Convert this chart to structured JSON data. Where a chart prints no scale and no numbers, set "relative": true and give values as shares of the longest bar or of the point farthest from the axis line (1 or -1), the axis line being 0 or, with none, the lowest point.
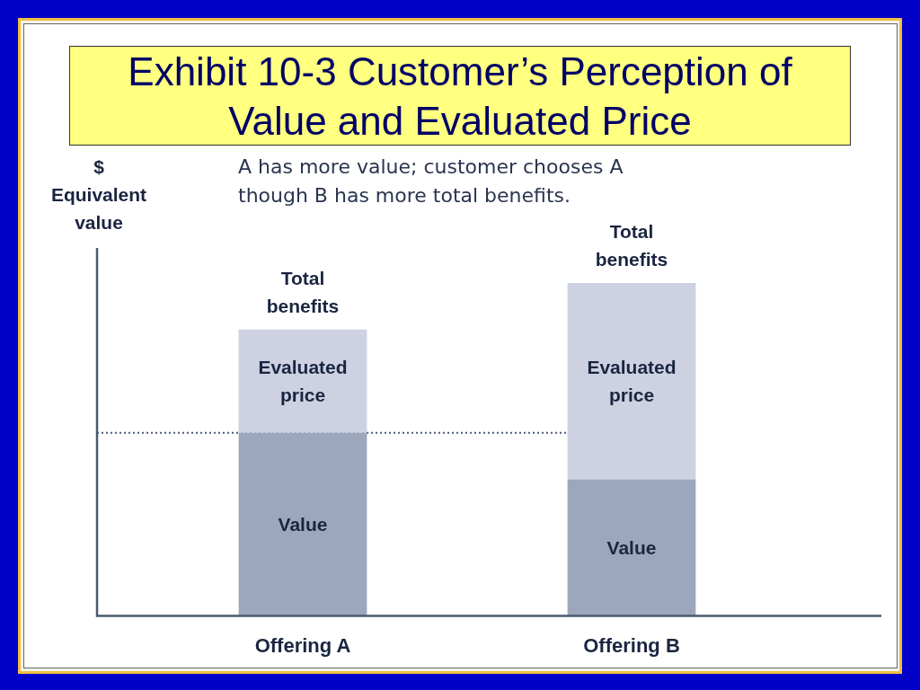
{
  "chart_data": {
    "type": "bar",
    "title": "Exhibit 10-3 Customer’s Perception of Value and Evaluated Price",
    "subtitle": "A has more value; customer chooses A though B has more total benefits.",
    "ylabel": "$ Equivalent value",
    "categories": [
      "Offering A",
      "Offering B"
    ],
    "stacked": true,
    "relative": true,
    "series": [
      {
        "name": "Value",
        "color": "#9ca6bc",
        "values": [
          0.55,
          0.41
        ]
      },
      {
        "name": "Evaluated price",
        "color": "#cdd1e2",
        "values": [
          0.31,
          0.59
        ]
      }
    ],
    "annotations": [
      {
        "text": "Total benefits",
        "x": "Offering A",
        "y": 0.86
      },
      {
        "text": "Total benefits",
        "x": "Offering B",
        "y": 1.0
      }
    ],
    "ref_lines": [
      {
        "axis": "y",
        "value": 0.55,
        "color": "#4a5a78",
        "line_style": "dotted"
      }
    ]
  }
}
